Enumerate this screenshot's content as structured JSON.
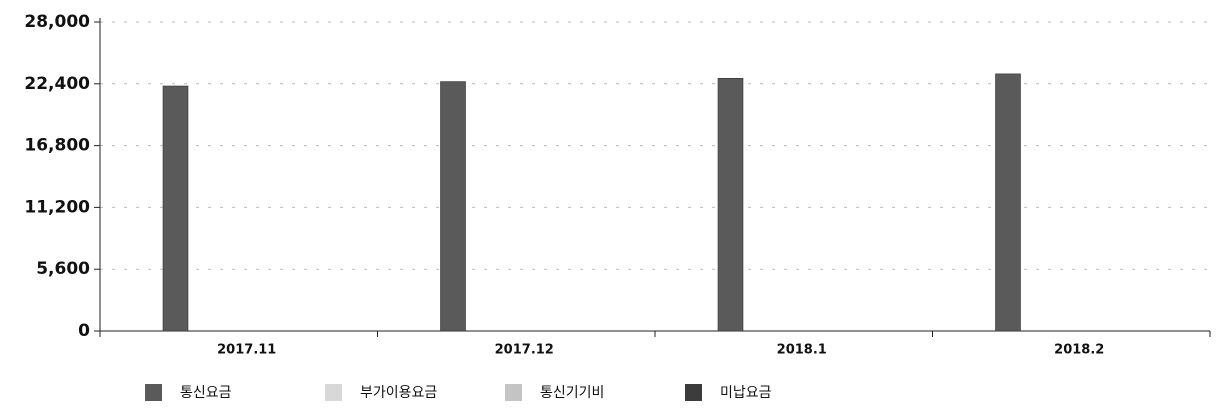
{
  "chart_data": {
    "type": "bar",
    "categories": [
      "2017.11",
      "2017.12",
      "2018.1",
      "2018.2"
    ],
    "series": [
      {
        "name": "통신요금",
        "color": "#5a5a5a",
        "values": [
          22200,
          22600,
          22900,
          23300
        ]
      },
      {
        "name": "부가이용요금",
        "color": "#d8d8d8",
        "values": [
          0,
          0,
          0,
          0
        ]
      },
      {
        "name": "통신기기비",
        "color": "#c4c4c4",
        "values": [
          0,
          0,
          0,
          0
        ]
      },
      {
        "name": "미납요금",
        "color": "#3c3c3c",
        "values": [
          0,
          0,
          0,
          0
        ]
      }
    ],
    "ylim": [
      0,
      28000
    ],
    "yticks": [
      0,
      {
        "value": 5600,
        "label": "5,600"
      },
      {
        "value": 11200,
        "label": "11,200"
      },
      {
        "value": 16800,
        "label": "16,800"
      },
      {
        "value": 22400,
        "label": "22,400"
      },
      {
        "value": 28000,
        "label": "28,000"
      }
    ],
    "grid": true
  }
}
